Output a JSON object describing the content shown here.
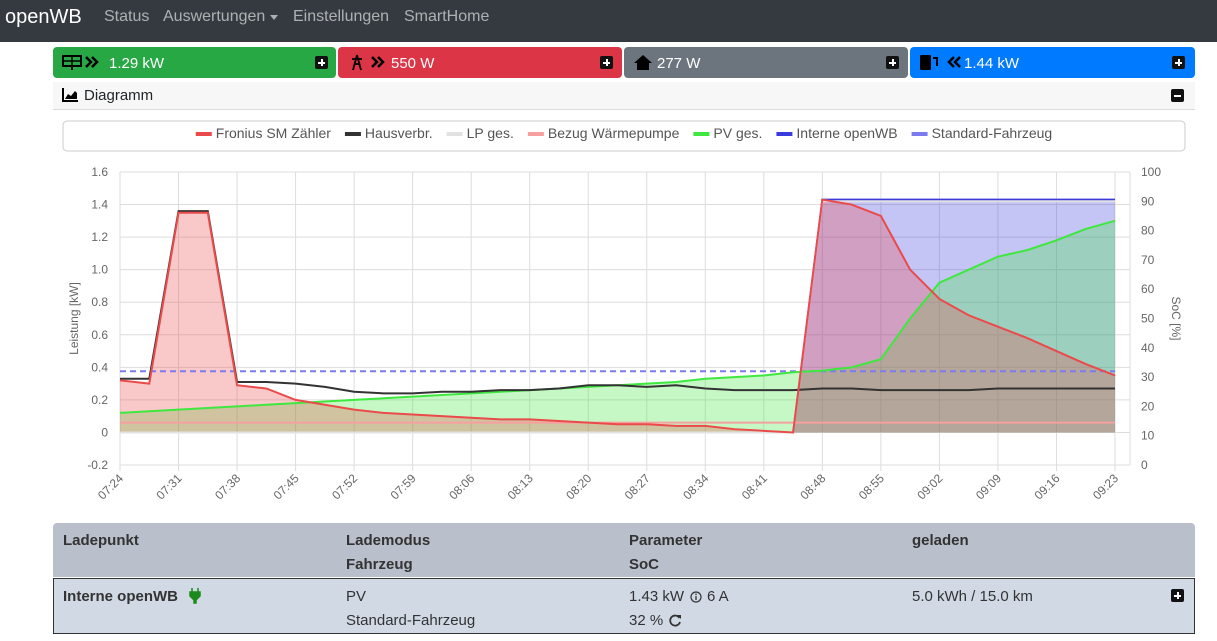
{
  "navbar": {
    "brand": "openWB",
    "links": [
      "Status",
      "Auswertungen",
      "Einstellungen",
      "SmartHome"
    ]
  },
  "tiles": [
    "1.29 kW",
    "550 W",
    "277 W",
    "1.44 kW"
  ],
  "card": {
    "title": "Diagramm"
  },
  "chart_data": {
    "type": "line",
    "ylabel": "Leistung [kW]",
    "y2label": "SoC [%]",
    "x": [
      "07:24",
      null,
      "07:31",
      null,
      "07:38",
      null,
      "07:45",
      null,
      "07:52",
      null,
      "07:59",
      null,
      "08:06",
      null,
      "08:13",
      null,
      "08:20",
      null,
      "08:27",
      null,
      "08:34",
      null,
      "08:41",
      null,
      "08:48",
      null,
      "08:55",
      null,
      "09:02",
      null,
      "09:09",
      null,
      "09:16",
      null,
      "09:23"
    ],
    "ylim": [
      -0.2,
      1.6
    ],
    "yticks": [
      -0.2,
      0,
      0.2,
      0.4,
      0.6,
      0.8,
      {
        "value": 1,
        "label": "1.0"
      },
      1.2,
      1.4,
      1.6
    ],
    "y2lim": [
      0,
      100
    ],
    "y2ticks": [
      0,
      10,
      20,
      30,
      40,
      50,
      60,
      70,
      80,
      90,
      100
    ],
    "grid": true,
    "series": [
      {
        "name": "Fronius SM Zähler",
        "color": "#ea4a4a",
        "fill": true,
        "values": [
          0.32,
          0.3,
          1.35,
          1.35,
          0.29,
          0.27,
          0.2,
          0.17,
          0.14,
          0.12,
          0.11,
          0.1,
          0.09,
          0.08,
          0.08,
          0.07,
          0.06,
          0.05,
          0.05,
          0.04,
          0.04,
          0.02,
          0.01,
          0,
          1.43,
          1.4,
          1.33,
          1.0,
          0.82,
          0.72,
          0.65,
          0.58,
          0.5,
          0.42,
          0.35
        ]
      },
      {
        "name": "Hausverbr.",
        "color": "#333333",
        "fill": false,
        "values": [
          0.33,
          0.33,
          1.36,
          1.36,
          0.31,
          0.31,
          0.3,
          0.28,
          0.25,
          0.24,
          0.24,
          0.25,
          0.25,
          0.26,
          0.26,
          0.27,
          0.29,
          0.29,
          0.28,
          0.29,
          0.27,
          0.26,
          0.26,
          0.26,
          0.27,
          0.27,
          0.26,
          0.26,
          0.26,
          0.26,
          0.27,
          0.27,
          0.27,
          0.27,
          0.27
        ]
      },
      {
        "name": "LP ges.",
        "color": "#e2e2e2",
        "fill": false,
        "values": [
          0,
          0,
          0,
          0,
          0,
          0,
          0,
          0,
          0,
          0,
          0,
          0,
          0,
          0,
          0,
          0,
          0,
          0,
          0,
          0,
          0,
          0,
          0,
          0,
          1.42,
          1.42,
          1.42,
          1.42,
          1.42,
          1.42,
          1.42,
          1.42,
          1.42,
          1.42,
          1.42
        ]
      },
      {
        "name": "Bezug Wärmepumpe",
        "color": "#f7a0a0",
        "fill": false,
        "values": [
          0.06,
          0.06,
          0.06,
          0.06,
          0.06,
          0.06,
          0.06,
          0.06,
          0.06,
          0.06,
          0.06,
          0.06,
          0.06,
          0.06,
          0.06,
          0.06,
          0.06,
          0.06,
          0.06,
          0.06,
          0.06,
          0.06,
          0.06,
          0.06,
          0.06,
          0.06,
          0.06,
          0.06,
          0.06,
          0.06,
          0.06,
          0.06,
          0.06,
          0.06,
          0.06
        ]
      },
      {
        "name": "PV ges.",
        "color": "#3ee83e",
        "fill": true,
        "values": [
          0.12,
          0.13,
          0.14,
          0.15,
          0.16,
          0.17,
          0.18,
          0.19,
          0.2,
          0.21,
          0.22,
          0.23,
          0.24,
          0.25,
          0.26,
          0.27,
          0.28,
          0.29,
          0.3,
          0.31,
          0.33,
          0.34,
          0.35,
          0.37,
          0.38,
          0.4,
          0.45,
          0.7,
          0.92,
          1.0,
          1.08,
          1.12,
          1.18,
          1.25,
          1.3
        ]
      },
      {
        "name": "Interne openWB",
        "color": "#3a3adf",
        "fill": true,
        "values": [
          0,
          0,
          0,
          0,
          0,
          0,
          0,
          0,
          0,
          0,
          0,
          0,
          0,
          0,
          0,
          0,
          0,
          0,
          0,
          0,
          0,
          0,
          0,
          0,
          1.43,
          1.43,
          1.43,
          1.43,
          1.43,
          1.43,
          1.43,
          1.43,
          1.43,
          1.43,
          1.43
        ]
      },
      {
        "name": "Standard-Fahrzeug",
        "color": "#7b7bef",
        "fill": false,
        "dashed": true,
        "axis": "y2",
        "values": [
          32,
          32,
          32,
          32,
          32,
          32,
          32,
          32,
          32,
          32,
          32,
          32,
          32,
          32,
          32,
          32,
          32,
          32,
          32,
          32,
          32,
          32,
          32,
          32,
          32,
          32,
          32,
          32,
          32,
          32,
          32,
          32,
          32,
          32,
          32
        ]
      }
    ]
  },
  "table": {
    "headers": [
      [
        "Ladepunkt"
      ],
      [
        "Lademodus",
        "Fahrzeug"
      ],
      [
        "Parameter",
        "SoC"
      ],
      [
        "geladen"
      ]
    ],
    "rows": [
      {
        "name": "Interne openWB",
        "mode": "PV",
        "vehicle": "Standard-Fahrzeug",
        "power": "1.43 kW",
        "current": "6 A",
        "soc": "32 %",
        "charged": "5.0 kWh / 15.0 km"
      }
    ]
  }
}
